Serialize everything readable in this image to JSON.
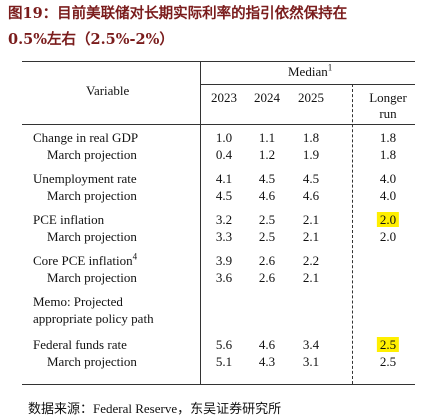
{
  "header": {
    "title_line1": "图19：目前美联储对长期实际利率的指引依然保持在",
    "title_line2": "0.5%左右（2.5%-2%）"
  },
  "table": {
    "variable_header": "Variable",
    "median_header": "Median",
    "median_note": "1",
    "columns": [
      "2023",
      "2024",
      "2025"
    ],
    "longer_run": [
      "Longer",
      "run"
    ],
    "groups": [
      {
        "rows": [
          {
            "label": "Change in real GDP",
            "values": [
              "1.0",
              "1.1",
              "1.8",
              "1.8"
            ]
          },
          {
            "label": "March projection",
            "values": [
              "0.4",
              "1.2",
              "1.9",
              "1.8"
            ]
          }
        ]
      },
      {
        "rows": [
          {
            "label": "Unemployment rate",
            "values": [
              "4.1",
              "4.5",
              "4.5",
              "4.0"
            ]
          },
          {
            "label": "March projection",
            "values": [
              "4.5",
              "4.6",
              "4.6",
              "4.0"
            ]
          }
        ]
      },
      {
        "rows": [
          {
            "label": "PCE inflation",
            "values": [
              "3.2",
              "2.5",
              "2.1",
              "2.0"
            ]
          },
          {
            "label": "March projection",
            "values": [
              "3.3",
              "2.5",
              "2.1",
              "2.0"
            ]
          }
        ]
      },
      {
        "rows": [
          {
            "label": "Core PCE inflation",
            "note": "4",
            "values": [
              "3.9",
              "2.6",
              "2.2",
              null
            ]
          },
          {
            "label": "March projection",
            "values": [
              "3.6",
              "2.6",
              "2.1",
              null
            ]
          }
        ]
      },
      {
        "rows": [
          {
            "label": "Memo: Projected",
            "values": [
              null,
              null,
              null,
              null
            ]
          },
          {
            "label": "appropriate policy path",
            "values": [
              null,
              null,
              null,
              null
            ]
          }
        ]
      },
      {
        "rows": [
          {
            "label": "Federal funds rate",
            "values": [
              "5.6",
              "4.6",
              "3.4",
              "2.5"
            ]
          },
          {
            "label": "March projection",
            "values": [
              "5.1",
              "4.3",
              "3.1",
              "2.5"
            ]
          }
        ]
      }
    ]
  },
  "source": "数据来源：Federal Reserve，东吴证券研究所"
}
